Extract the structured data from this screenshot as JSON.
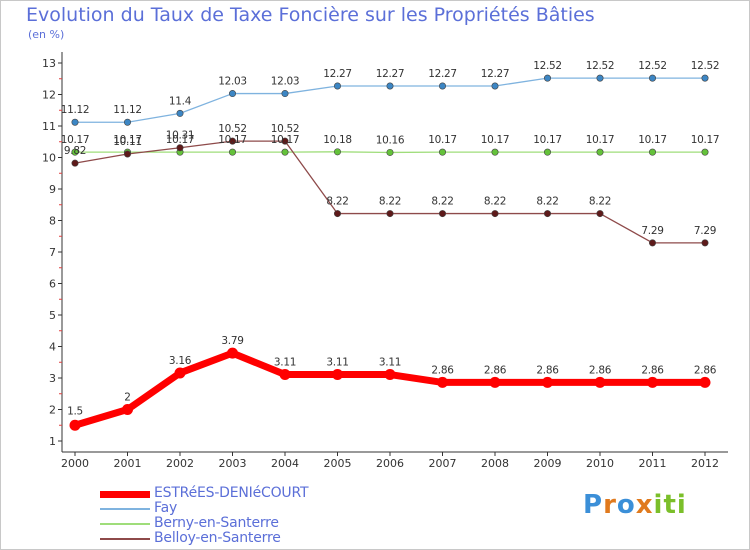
{
  "header": {
    "title": "Evolution du Taux de Taxe Foncière sur les Propriétés Bâties",
    "unit": "(en %)"
  },
  "logo": {
    "letters": [
      "P",
      "r",
      "o",
      "x",
      "i",
      "t",
      "i"
    ],
    "colors": [
      "#3b8fd8",
      "#e07a1e",
      "#3b8fd8",
      "#e07a1e",
      "#7bbf2a",
      "#7bbf2a",
      "#7bbf2a"
    ]
  },
  "chart_data": {
    "type": "line",
    "title": "Evolution du Taux de Taxe Foncière sur les Propriétés Bâties",
    "ylabel": "(en %)",
    "xlabel": "",
    "ylim": [
      1,
      13
    ],
    "yticks": [
      "1",
      "2",
      "3",
      "4",
      "5",
      "6",
      "7",
      "8",
      "9",
      "10",
      "11",
      "12",
      "13"
    ],
    "categories": [
      "2000",
      "2001",
      "2002",
      "2003",
      "2004",
      "2005",
      "2006",
      "2007",
      "2008",
      "2009",
      "2010",
      "2011",
      "2012"
    ],
    "grid": false,
    "series": [
      {
        "name": "ESTRéES-DENIéCOURT",
        "color": "#ff0000",
        "marker": "#ff0000",
        "values": [
          1.5,
          2,
          3.16,
          3.79,
          3.11,
          3.11,
          3.11,
          2.86,
          2.86,
          2.86,
          2.86,
          2.86,
          2.86
        ],
        "labels": [
          "1.5",
          "2",
          "3.16",
          "3.79",
          "3.11",
          "3.11",
          "3.11",
          "2.86",
          "2.86",
          "2.86",
          "2.86",
          "2.86",
          "2.86"
        ]
      },
      {
        "name": "Fay",
        "color": "#7fb3df",
        "marker": "#3c86c4",
        "values": [
          11.12,
          11.12,
          11.4,
          12.03,
          12.03,
          12.27,
          12.27,
          12.27,
          12.27,
          12.52,
          12.52,
          12.52,
          12.52
        ],
        "labels": [
          "11.12",
          "11.12",
          "11.4",
          "12.03",
          "12.03",
          "12.27",
          "12.27",
          "12.27",
          "12.27",
          "12.52",
          "12.52",
          "12.52",
          "12.52"
        ]
      },
      {
        "name": "Berny-en-Santerre",
        "color": "#9fdd7a",
        "marker": "#64c23a",
        "values": [
          10.17,
          10.17,
          10.17,
          10.17,
          10.17,
          10.18,
          10.16,
          10.17,
          10.17,
          10.17,
          10.17,
          10.17,
          10.17
        ],
        "labels": [
          "10.17",
          "10.17",
          "10.17",
          "10.17",
          "10.17",
          "10.18",
          "10.16",
          "10.17",
          "10.17",
          "10.17",
          "10.17",
          "10.17",
          "10.17"
        ]
      },
      {
        "name": "Belloy-en-Santerre",
        "color": "#8e4a4a",
        "marker": "#5e1a1a",
        "values": [
          9.82,
          10.11,
          10.31,
          10.52,
          10.52,
          8.22,
          8.22,
          8.22,
          8.22,
          8.22,
          8.22,
          7.29,
          7.29
        ],
        "labels": [
          "9.82",
          "10.11",
          "10.31",
          "10.52",
          "10.52",
          "8.22",
          "8.22",
          "8.22",
          "8.22",
          "8.22",
          "8.22",
          "7.29",
          "7.29"
        ]
      }
    ]
  }
}
